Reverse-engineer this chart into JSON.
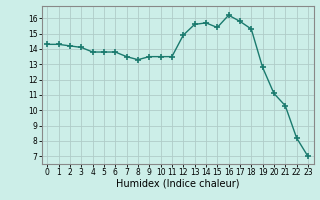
{
  "x": [
    0,
    1,
    2,
    3,
    4,
    5,
    6,
    7,
    8,
    9,
    10,
    11,
    12,
    13,
    14,
    15,
    16,
    17,
    18,
    19,
    20,
    21,
    22,
    23
  ],
  "y": [
    14.3,
    14.3,
    14.2,
    14.1,
    13.8,
    13.8,
    13.8,
    13.5,
    13.3,
    13.5,
    13.5,
    13.5,
    14.9,
    15.6,
    15.7,
    15.4,
    16.2,
    15.8,
    15.3,
    12.8,
    11.1,
    10.3,
    8.2,
    7.0
  ],
  "xlabel": "Humidex (Indice chaleur)",
  "ylim": [
    6.5,
    16.8
  ],
  "xlim": [
    -0.5,
    23.5
  ],
  "yticks": [
    7,
    8,
    9,
    10,
    11,
    12,
    13,
    14,
    15,
    16
  ],
  "xticks": [
    0,
    1,
    2,
    3,
    4,
    5,
    6,
    7,
    8,
    9,
    10,
    11,
    12,
    13,
    14,
    15,
    16,
    17,
    18,
    19,
    20,
    21,
    22,
    23
  ],
  "line_color": "#1a7a6e",
  "marker": "+",
  "marker_size": 4,
  "bg_color": "#cceee8",
  "grid_color": "#b0ccc8",
  "tick_label_fontsize": 5.5,
  "xlabel_fontsize": 7,
  "spine_color": "#888888"
}
